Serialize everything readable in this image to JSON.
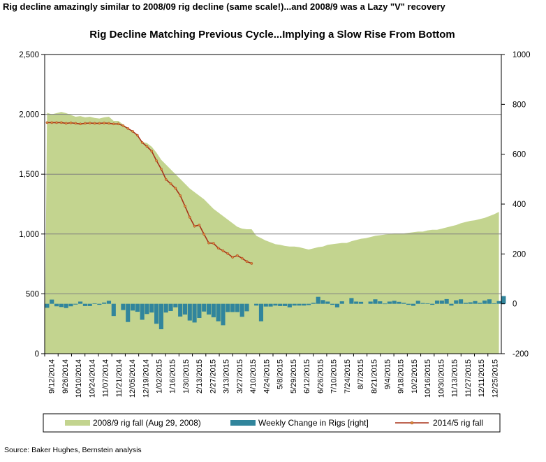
{
  "headline": "Rig decline amazingly similar to 2008/09 rig decline (same scale!)...and 2008/9 was a Lazy \"V\" recovery",
  "source": "Source: Baker Hughes, Bernstein analysis",
  "chart_data": {
    "type": "area",
    "title": "Rig Decline Matching Previous Cycle...Implying a Slow Rise From Bottom",
    "xlabel": "",
    "ylabel": "",
    "ylim": [
      0,
      2500
    ],
    "y_ticks": [
      "0",
      "500",
      "1,000",
      "1,500",
      "2,000",
      "2,500"
    ],
    "y2lim": [
      -200,
      1000
    ],
    "y2_ticks": [
      "-200",
      "0",
      "200",
      "400",
      "600",
      "800",
      "1000"
    ],
    "x_labels": [
      "9/12/2014",
      "9/26/2014",
      "10/10/2014",
      "10/24/2014",
      "11/07/2014",
      "11/21/2014",
      "12/05/2014",
      "12/19/2014",
      "1/02/2015",
      "1/16/2015",
      "1/30/2015",
      "2/13/2015",
      "2/27/2015",
      "3/13/2015",
      "3/27/2015",
      "4/10/2015",
      "4/24/2015",
      "5/8/2015",
      "5/29/2015",
      "6/12/2015",
      "6/26/2015",
      "7/10/2015",
      "7/24/2015",
      "8/7/2015",
      "8/21/2015",
      "9/4/2015",
      "9/18/2015",
      "10/2/2015",
      "10/16/2015",
      "10/30/2015",
      "11/13/2015",
      "11/27/2015",
      "12/11/2015",
      "12/25/2015"
    ],
    "grid": true,
    "legend_position": "bottom",
    "colors": {
      "area": "#c3d48f",
      "bars": "#31859c",
      "line": "#a83219",
      "marker": "#d9923b"
    },
    "series": [
      {
        "name": "2008/9 rig fall (Aug 29, 2008)",
        "type": "area",
        "axis": "left",
        "values": [
          2013,
          2000,
          2010,
          2020,
          2010,
          1995,
          1980,
          1985,
          1975,
          1980,
          1970,
          1965,
          1975,
          1980,
          1945,
          1945,
          1915,
          1885,
          1860,
          1820,
          1770,
          1760,
          1730,
          1680,
          1620,
          1580,
          1540,
          1500,
          1460,
          1420,
          1380,
          1350,
          1320,
          1290,
          1250,
          1210,
          1180,
          1150,
          1120,
          1090,
          1060,
          1045,
          1040,
          1040,
          985,
          965,
          945,
          930,
          915,
          910,
          900,
          895,
          895,
          890,
          880,
          870,
          880,
          890,
          895,
          910,
          915,
          920,
          925,
          925,
          940,
          950,
          960,
          965,
          975,
          985,
          990,
          995,
          1000,
          1005,
          1005,
          1005,
          1010,
          1015,
          1020,
          1020,
          1030,
          1035,
          1035,
          1045,
          1055,
          1065,
          1075,
          1090,
          1100,
          1110,
          1115,
          1125,
          1135,
          1150,
          1165,
          1185
        ]
      },
      {
        "name": "Weekly Change in Rigs [right]",
        "type": "bar",
        "axis": "right",
        "values": [
          -16,
          17,
          -10,
          -13,
          -17,
          -10,
          -3,
          9,
          -9,
          -9,
          2,
          -4,
          5,
          12,
          -49,
          0,
          -25,
          -73,
          -27,
          -32,
          -64,
          -41,
          -35,
          -80,
          -102,
          -35,
          -29,
          -14,
          -51,
          -43,
          -67,
          -75,
          -57,
          -31,
          -43,
          -54,
          -70,
          -86,
          -33,
          -33,
          -33,
          -52,
          -30,
          0,
          -7,
          -70,
          -11,
          -11,
          -7,
          -9,
          -9,
          -14,
          -7,
          -7,
          -7,
          -5,
          4,
          28,
          15,
          9,
          -4,
          -14,
          10,
          0,
          23,
          9,
          8,
          0,
          9,
          18,
          10,
          1,
          9,
          12,
          8,
          4,
          -4,
          -8,
          12,
          3,
          2,
          -4,
          13,
          13,
          19,
          -7,
          14,
          18,
          4,
          6,
          11,
          4,
          13,
          18,
          2,
          11,
          31
        ]
      },
      {
        "name": "2014/5 rig fall",
        "type": "line",
        "axis": "left",
        "values": [
          1931,
          1931,
          1931,
          1931,
          1925,
          1929,
          1925,
          1920,
          1925,
          1927,
          1925,
          1925,
          1927,
          1925,
          1920,
          1920,
          1905,
          1882,
          1858,
          1825,
          1765,
          1731,
          1692,
          1613,
          1543,
          1456,
          1420,
          1382,
          1321,
          1233,
          1140,
          1065,
          1075,
          998,
          925,
          922,
          882,
          860,
          836,
          806,
          820,
          797,
          770,
          754
        ]
      }
    ]
  }
}
